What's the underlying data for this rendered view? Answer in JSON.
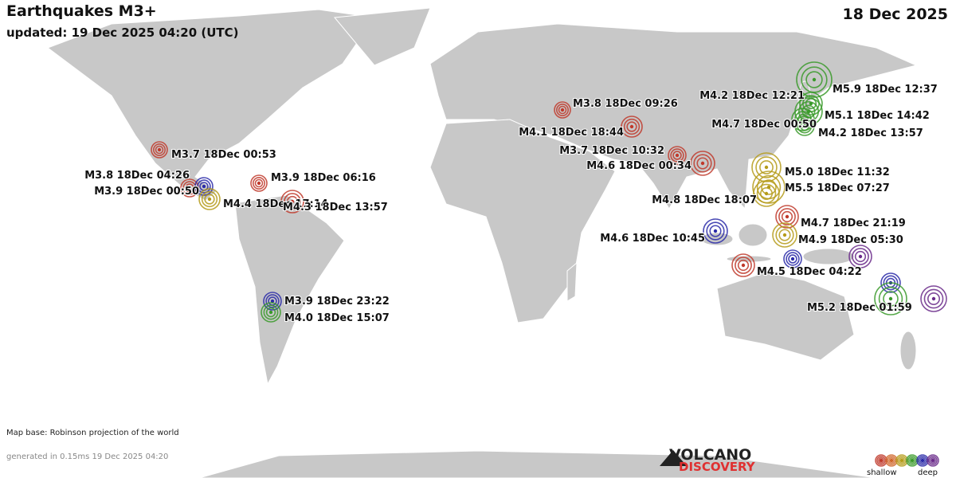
{
  "header": {
    "title": "Earthquakes M3+",
    "updated": "updated: 19 Dec 2025 04:20 (UTC)",
    "date": "18 Dec 2025"
  },
  "quakes": [
    {
      "label": "M3.7 18Dec 00:53",
      "color": "#c0392b"
    },
    {
      "label": "M3.8 18Dec 04:26",
      "color": "#c0392b"
    },
    {
      "label": "M3.9 18Dec 00:50",
      "color": "#2a2aa8"
    },
    {
      "label": "M4.4 18Dec 17:14",
      "color": "#b59b1a"
    },
    {
      "label": "M3.9 18Dec 06:16",
      "color": "#c0392b"
    },
    {
      "label": "M4.3 18Dec 13:57",
      "color": "#c0392b"
    },
    {
      "label": "M3.9 18Dec 23:22",
      "color": "#2a2aa8"
    },
    {
      "label": "M4.0 18Dec 15:07",
      "color": "#3a9a2a"
    },
    {
      "label": "M3.8 18Dec 09:26",
      "color": "#c0392b"
    },
    {
      "label": "M4.1 18Dec 18:44",
      "color": "#c0392b"
    },
    {
      "label": "M3.7 18Dec 10:32",
      "color": "#c0392b"
    },
    {
      "label": "M4.6 18Dec 00:34",
      "color": "#c0392b"
    },
    {
      "label": "M4.8 18Dec 18:07",
      "color": "#b59b1a"
    },
    {
      "label": "M5.0 18Dec 11:32",
      "color": "#b59b1a"
    },
    {
      "label": "M5.5 18Dec 07:27",
      "color": "#b59b1a"
    },
    {
      "label": "M4.2 18Dec 12:21",
      "color": "#3a9a2a"
    },
    {
      "label": "M5.9 18Dec 12:37",
      "color": "#3a9a2a"
    },
    {
      "label": "M5.1 18Dec 14:42",
      "color": "#3a9a2a"
    },
    {
      "label": "M4.7 18Dec 00:50",
      "color": "#3a9a2a"
    },
    {
      "label": "M4.2 18Dec 13:57",
      "color": "#3a9a2a"
    },
    {
      "label": "M4.7 18Dec 21:19",
      "color": "#c0392b"
    },
    {
      "label": "M4.9 18Dec 05:30",
      "color": "#b59b1a"
    },
    {
      "label": "M4.6 18Dec 10:45",
      "color": "#2a2aa8"
    },
    {
      "label": "M4.5 18Dec 04:22",
      "color": "#c0392b"
    },
    {
      "label": "M5.2 18Dec 01:59",
      "color": "#3a9a2a"
    }
  ],
  "footer": {
    "map_base": "Map base: Robinson projection of the world",
    "generated": "generated in 0.15ms 19 Dec 2025 04:20"
  },
  "logo": {
    "line1": "VOLCANO",
    "line2": "DISCOVERY"
  },
  "legend": {
    "shallow": "shallow",
    "deep": "deep"
  }
}
